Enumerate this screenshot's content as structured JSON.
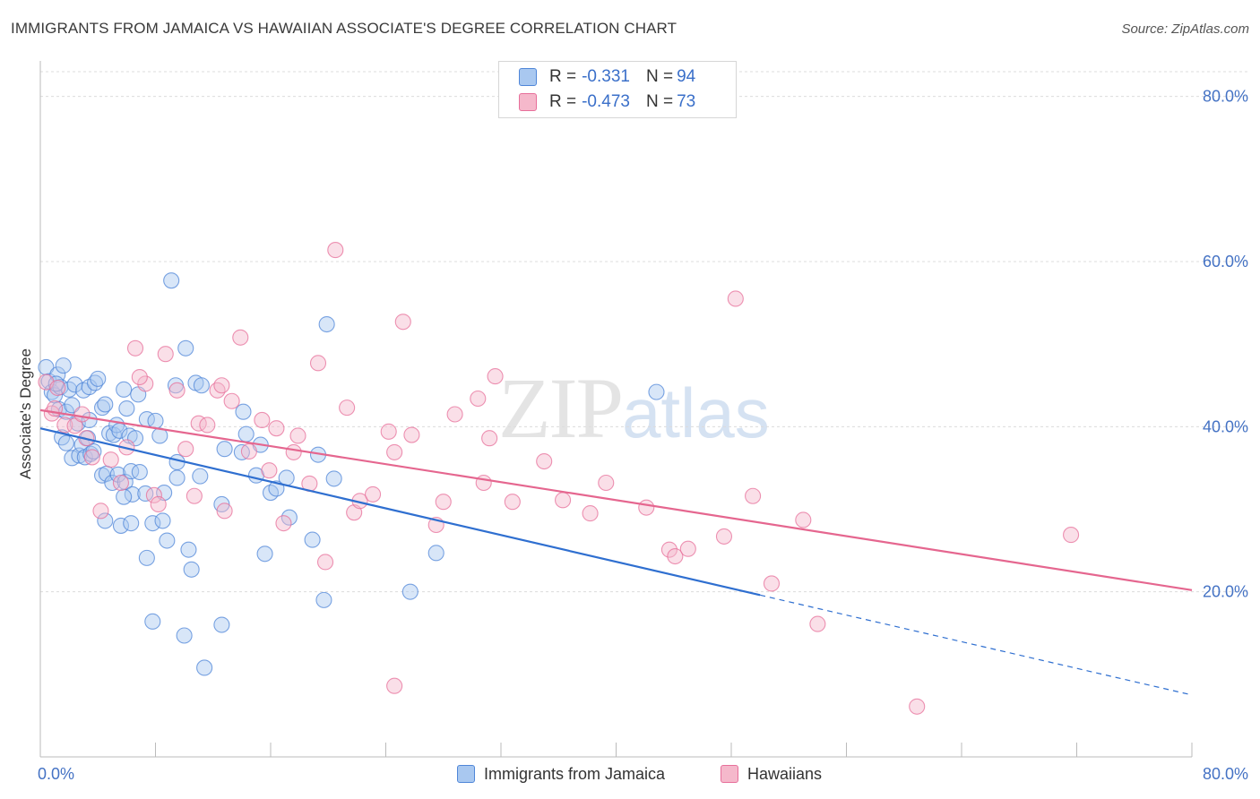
{
  "title": "IMMIGRANTS FROM JAMAICA VS HAWAIIAN ASSOCIATE'S DEGREE CORRELATION CHART",
  "source": "Source: ZipAtlas.com",
  "watermark": {
    "zip": "ZIP",
    "atlas": "atlas"
  },
  "legend": {
    "rows": [
      {
        "r_label": "R = ",
        "r_value": "-0.331",
        "n_label": "N = ",
        "n_value": "94",
        "color": "#a9c8f0"
      },
      {
        "r_label": "R = ",
        "r_value": "-0.473",
        "n_label": "N = ",
        "n_value": "73",
        "color": "#f5b8cb"
      }
    ]
  },
  "bottom_legend": {
    "series1": "Immigrants from Jamaica",
    "series2": "Hawaiians"
  },
  "chart_data": {
    "type": "scatter",
    "xlabel": "",
    "ylabel": "Associate's Degree",
    "xlim": [
      0,
      80
    ],
    "ylim": [
      0,
      83
    ],
    "x_tick_labels": {
      "left": "0.0%",
      "right": "80.0%"
    },
    "y_ticks": [
      20,
      40,
      60,
      80
    ],
    "y_tick_labels": [
      "20.0%",
      "40.0%",
      "60.0%",
      "80.0%"
    ],
    "grid": true,
    "series": [
      {
        "name": "Immigrants from Jamaica",
        "color": "#4f86d8",
        "fill": "#a9c8f0",
        "trend": {
          "x0": 0,
          "y0": 39.8,
          "x1": 50,
          "y1": 19.6,
          "dashed_to_x": 80,
          "dashed_to_y": 7.5,
          "color": "#2f6fd0"
        },
        "points": [
          [
            0.4,
            47.2
          ],
          [
            0.6,
            45.5
          ],
          [
            0.8,
            44.2
          ],
          [
            1.0,
            43.8
          ],
          [
            1.2,
            46.3
          ],
          [
            1.4,
            44.8
          ],
          [
            1.3,
            42.1
          ],
          [
            1.6,
            47.4
          ],
          [
            1.8,
            41.8
          ],
          [
            2.0,
            44.5
          ],
          [
            2.2,
            42.6
          ],
          [
            2.4,
            45.1
          ],
          [
            2.6,
            40.4
          ],
          [
            1.5,
            38.7
          ],
          [
            1.8,
            38.0
          ],
          [
            2.2,
            36.2
          ],
          [
            2.7,
            36.5
          ],
          [
            2.9,
            37.8
          ],
          [
            3.1,
            36.3
          ],
          [
            3.3,
            38.6
          ],
          [
            3.5,
            36.7
          ],
          [
            3.7,
            37.0
          ],
          [
            3.0,
            44.4
          ],
          [
            3.4,
            44.8
          ],
          [
            3.8,
            45.3
          ],
          [
            4.0,
            45.8
          ],
          [
            4.3,
            42.3
          ],
          [
            4.5,
            42.7
          ],
          [
            4.8,
            39.2
          ],
          [
            5.1,
            39.0
          ],
          [
            5.3,
            40.2
          ],
          [
            5.5,
            39.5
          ],
          [
            5.8,
            44.5
          ],
          [
            6.0,
            42.2
          ],
          [
            6.2,
            38.9
          ],
          [
            6.6,
            38.6
          ],
          [
            6.8,
            43.9
          ],
          [
            7.4,
            40.9
          ],
          [
            8.0,
            40.7
          ],
          [
            8.3,
            38.9
          ],
          [
            4.3,
            34.1
          ],
          [
            4.6,
            34.3
          ],
          [
            5.0,
            33.2
          ],
          [
            5.4,
            34.2
          ],
          [
            5.9,
            33.3
          ],
          [
            6.3,
            34.6
          ],
          [
            6.9,
            34.5
          ],
          [
            6.4,
            31.8
          ],
          [
            7.3,
            31.9
          ],
          [
            8.6,
            32.0
          ],
          [
            9.5,
            33.8
          ],
          [
            5.8,
            31.5
          ],
          [
            4.5,
            28.6
          ],
          [
            5.6,
            28.0
          ],
          [
            6.3,
            28.3
          ],
          [
            7.8,
            28.3
          ],
          [
            8.5,
            28.6
          ],
          [
            8.8,
            26.2
          ],
          [
            7.4,
            24.1
          ],
          [
            10.3,
            25.1
          ],
          [
            10.5,
            22.7
          ],
          [
            9.5,
            35.7
          ],
          [
            9.4,
            45.0
          ],
          [
            10.8,
            45.3
          ],
          [
            11.2,
            45.0
          ],
          [
            9.1,
            57.7
          ],
          [
            10.1,
            49.5
          ],
          [
            11.1,
            34.0
          ],
          [
            12.8,
            37.3
          ],
          [
            14.0,
            36.9
          ],
          [
            14.3,
            39.1
          ],
          [
            14.1,
            41.8
          ],
          [
            15.3,
            37.8
          ],
          [
            15.0,
            34.1
          ],
          [
            15.6,
            24.6
          ],
          [
            16.0,
            32.0
          ],
          [
            16.4,
            32.5
          ],
          [
            17.1,
            33.8
          ],
          [
            17.3,
            29.0
          ],
          [
            18.9,
            26.3
          ],
          [
            19.3,
            36.6
          ],
          [
            19.7,
            19.0
          ],
          [
            20.4,
            33.7
          ],
          [
            19.9,
            52.4
          ],
          [
            12.6,
            30.6
          ],
          [
            10.0,
            14.7
          ],
          [
            11.4,
            10.8
          ],
          [
            12.6,
            16.0
          ],
          [
            7.8,
            16.4
          ],
          [
            25.7,
            20.0
          ],
          [
            27.5,
            24.7
          ],
          [
            42.8,
            44.2
          ],
          [
            3.4,
            40.8
          ],
          [
            1.1,
            45.2
          ]
        ]
      },
      {
        "name": "Hawaiians",
        "color": "#e76f9a",
        "fill": "#f5b8cb",
        "trend": {
          "x0": 0,
          "y0": 42.0,
          "x1": 80,
          "y1": 20.2,
          "color": "#e5668f"
        },
        "points": [
          [
            0.4,
            45.4
          ],
          [
            0.8,
            41.6
          ],
          [
            1.2,
            44.7
          ],
          [
            1.7,
            40.2
          ],
          [
            2.4,
            40.1
          ],
          [
            2.9,
            41.5
          ],
          [
            3.2,
            38.6
          ],
          [
            3.6,
            36.3
          ],
          [
            4.2,
            29.8
          ],
          [
            4.9,
            36.0
          ],
          [
            5.6,
            33.2
          ],
          [
            6.0,
            37.5
          ],
          [
            6.6,
            49.5
          ],
          [
            7.3,
            45.2
          ],
          [
            7.9,
            31.7
          ],
          [
            8.7,
            48.8
          ],
          [
            9.5,
            44.4
          ],
          [
            10.1,
            37.3
          ],
          [
            10.7,
            31.6
          ],
          [
            11.0,
            40.4
          ],
          [
            11.6,
            40.2
          ],
          [
            12.3,
            44.4
          ],
          [
            12.6,
            45.0
          ],
          [
            12.8,
            29.8
          ],
          [
            13.3,
            43.1
          ],
          [
            13.9,
            50.8
          ],
          [
            14.5,
            37.0
          ],
          [
            15.4,
            40.8
          ],
          [
            15.9,
            34.7
          ],
          [
            16.4,
            39.8
          ],
          [
            16.9,
            28.3
          ],
          [
            17.6,
            36.9
          ],
          [
            17.9,
            38.9
          ],
          [
            18.7,
            33.1
          ],
          [
            19.3,
            47.7
          ],
          [
            19.8,
            23.6
          ],
          [
            20.5,
            61.4
          ],
          [
            21.3,
            42.3
          ],
          [
            21.8,
            29.6
          ],
          [
            22.2,
            31.0
          ],
          [
            23.1,
            31.8
          ],
          [
            24.2,
            39.4
          ],
          [
            24.6,
            36.9
          ],
          [
            25.8,
            39.0
          ],
          [
            25.2,
            52.7
          ],
          [
            27.5,
            28.1
          ],
          [
            28.0,
            30.9
          ],
          [
            28.8,
            41.5
          ],
          [
            30.4,
            43.4
          ],
          [
            30.8,
            33.2
          ],
          [
            31.2,
            38.6
          ],
          [
            31.6,
            46.1
          ],
          [
            32.8,
            30.9
          ],
          [
            35.0,
            35.8
          ],
          [
            36.3,
            31.1
          ],
          [
            38.2,
            29.5
          ],
          [
            39.3,
            33.2
          ],
          [
            42.1,
            30.2
          ],
          [
            43.7,
            25.1
          ],
          [
            44.1,
            24.3
          ],
          [
            45.0,
            25.2
          ],
          [
            47.5,
            26.7
          ],
          [
            48.3,
            55.5
          ],
          [
            49.5,
            31.6
          ],
          [
            50.8,
            21.0
          ],
          [
            53.0,
            28.7
          ],
          [
            54.0,
            16.1
          ],
          [
            24.6,
            8.6
          ],
          [
            60.9,
            6.1
          ],
          [
            71.6,
            26.9
          ],
          [
            1.0,
            42.2
          ],
          [
            6.9,
            46.0
          ],
          [
            8.2,
            30.6
          ]
        ]
      }
    ]
  }
}
